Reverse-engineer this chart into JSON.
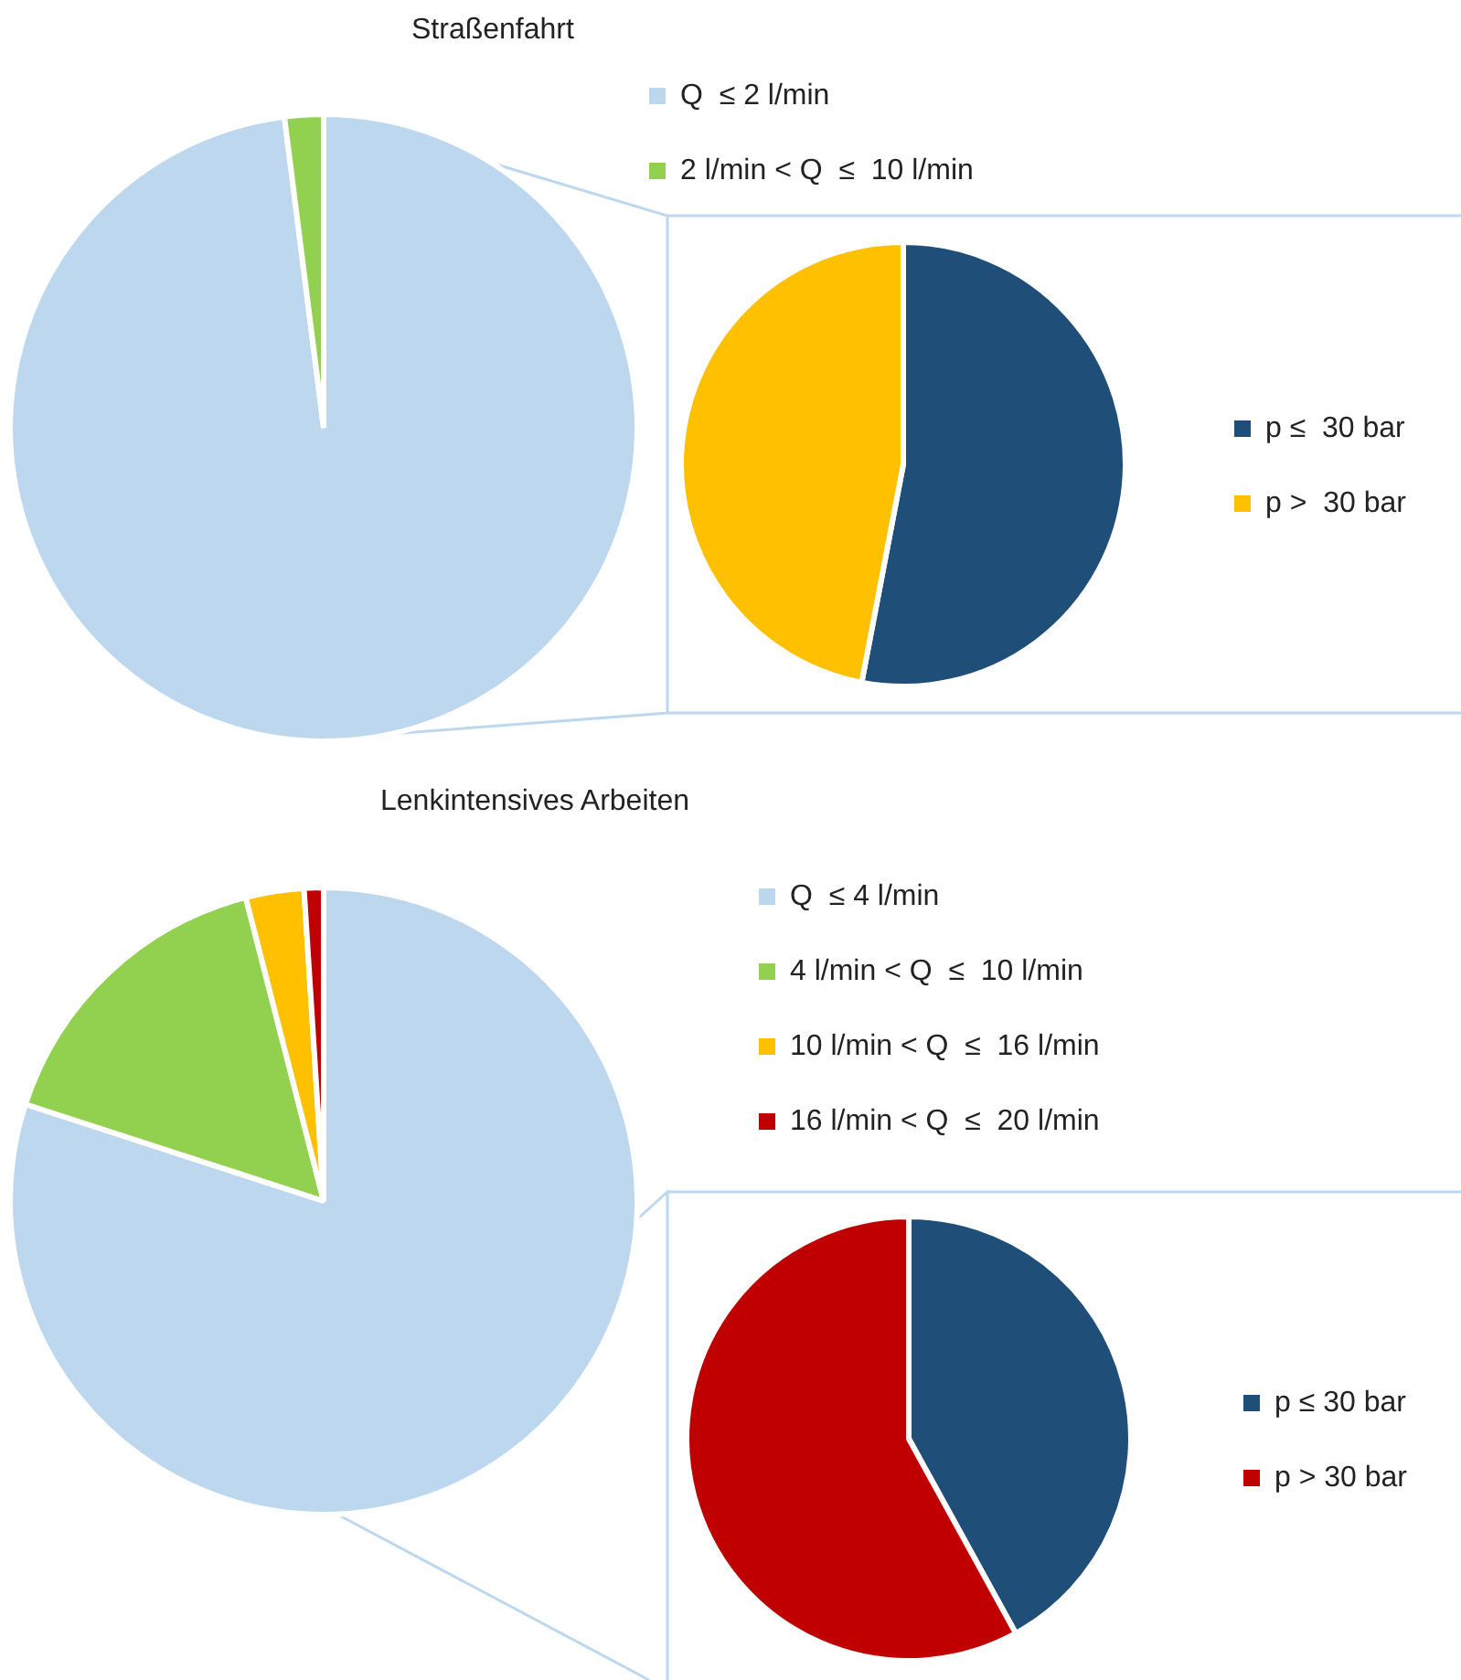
{
  "chart_data": [
    {
      "type": "pie",
      "title": "Straßenfahrt",
      "categories": [
        "Q  ≤ 2 l/min",
        "2 l/min < Q  ≤  10 l/min"
      ],
      "values": [
        98,
        2
      ],
      "colors": [
        "#bdd7ee",
        "#92d050"
      ],
      "legend": "top right"
    },
    {
      "type": "pie",
      "categories": [
        "p ≤  30 bar",
        "p >  30 bar"
      ],
      "values": [
        53,
        47
      ],
      "colors": [
        "#1f4e79",
        "#ffc000"
      ],
      "legend": "right"
    },
    {
      "type": "pie",
      "title": "Lenkintensives Arbeiten",
      "categories": [
        "Q  ≤ 4 l/min",
        "4 l/min < Q  ≤  10 l/min",
        "10 l/min < Q  ≤  16 l/min",
        "16 l/min < Q  ≤  20 l/min"
      ],
      "values": [
        80,
        16,
        3,
        1
      ],
      "colors": [
        "#bdd7ee",
        "#92d050",
        "#ffc000",
        "#c00000"
      ],
      "legend": "top right"
    },
    {
      "type": "pie",
      "categories": [
        "p ≤ 30 bar",
        "p > 30 bar"
      ],
      "values": [
        42,
        58
      ],
      "colors": [
        "#1f4e79",
        "#c00000"
      ],
      "legend": "right"
    }
  ]
}
